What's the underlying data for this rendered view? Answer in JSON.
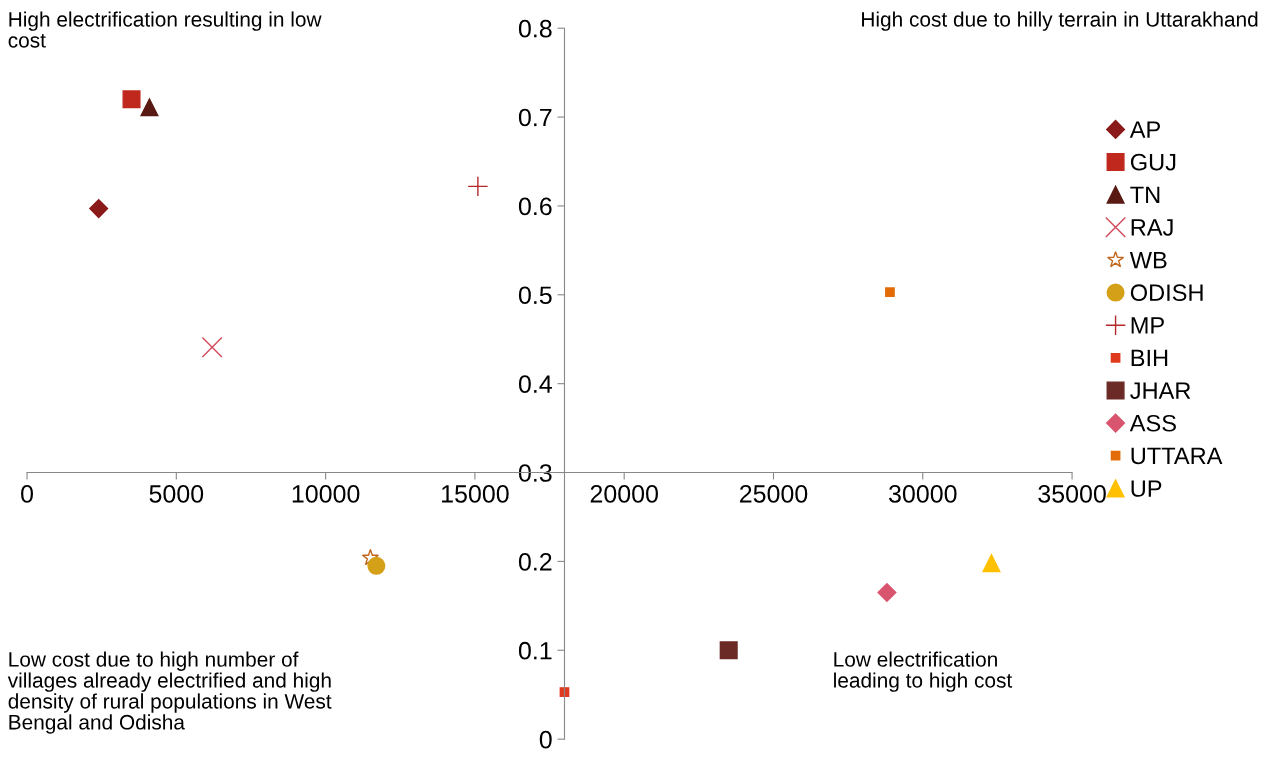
{
  "chart_data": {
    "type": "scatter",
    "xlim": [
      0,
      35000
    ],
    "xticks": [
      0,
      5000,
      10000,
      15000,
      20000,
      25000,
      30000,
      35000
    ],
    "ylim": [
      0,
      0.8
    ],
    "yticks": [
      0,
      0.1,
      0.2,
      0.3,
      0.4,
      0.5,
      0.6,
      0.7,
      0.8
    ],
    "grid": false,
    "legend": "right",
    "series": [
      {
        "name": "AP",
        "color": "#8b1a1a",
        "marker": "diamond",
        "x": [
          2400
        ],
        "values": [
          0.597
        ]
      },
      {
        "name": "GUJ",
        "color": "#c0281e",
        "marker": "square",
        "x": [
          3500
        ],
        "values": [
          0.72
        ]
      },
      {
        "name": "TN",
        "color": "#5a1a14",
        "marker": "triangle",
        "x": [
          4100
        ],
        "values": [
          0.711
        ]
      },
      {
        "name": "RAJ",
        "color": "#d04a5a",
        "marker": "cross",
        "x": [
          6200
        ],
        "values": [
          0.441
        ]
      },
      {
        "name": "WB",
        "color": "#c0661c",
        "marker": "star",
        "x": [
          11500
        ],
        "values": [
          0.204
        ]
      },
      {
        "name": "ODISH",
        "color": "#d4a017",
        "marker": "circle",
        "x": [
          11700
        ],
        "values": [
          0.195
        ]
      },
      {
        "name": "MP",
        "color": "#b5282a",
        "marker": "plus",
        "x": [
          15100
        ],
        "values": [
          0.622
        ]
      },
      {
        "name": "BIH",
        "color": "#e03a1e",
        "marker": "square",
        "x": [
          18000
        ],
        "values": [
          0.053
        ]
      },
      {
        "name": "JHAR",
        "color": "#6b2a26",
        "marker": "square",
        "x": [
          23500
        ],
        "values": [
          0.1
        ]
      },
      {
        "name": "ASS",
        "color": "#d9546e",
        "marker": "diamond",
        "x": [
          28800
        ],
        "values": [
          0.165
        ]
      },
      {
        "name": "UTTARA",
        "color": "#e36c09",
        "marker": "square",
        "x": [
          28900
        ],
        "values": [
          0.503
        ]
      },
      {
        "name": "UP",
        "color": "#ffc000",
        "marker": "triangle",
        "x": [
          32300
        ],
        "values": [
          0.198
        ]
      }
    ],
    "annotations": [
      "High electrification resulting in low\ncost",
      "High cost due to hilly terrain in Uttarakhand",
      "Low cost due to high number of\nvillages already electrified and high\ndensity of rural populations in West\nBengal and Odisha",
      "Low electrification\nleading to high cost"
    ]
  }
}
